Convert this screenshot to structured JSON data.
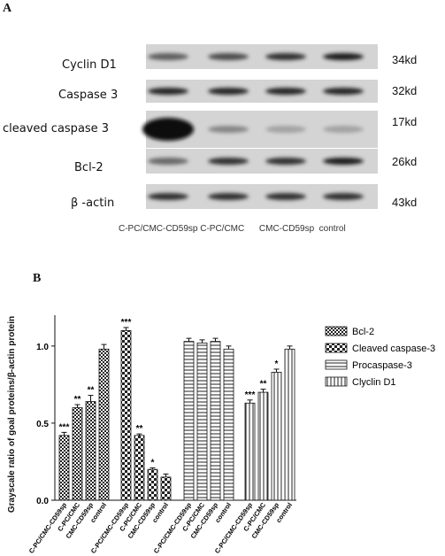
{
  "panel_a": {
    "letter": "A",
    "rows": [
      {
        "label": "Cyclin D1",
        "size": "34kd",
        "intensity": [
          0.55,
          0.65,
          0.8,
          0.9
        ]
      },
      {
        "label": "Caspase 3",
        "size": "32kd",
        "intensity": [
          0.85,
          0.85,
          0.85,
          0.85
        ]
      },
      {
        "label": "cleaved caspase 3",
        "size": "17kd",
        "intensity": [
          1.0,
          0.35,
          0.2,
          0.2
        ]
      },
      {
        "label": "Bcl-2",
        "size": "26kd",
        "intensity": [
          0.5,
          0.8,
          0.8,
          0.9
        ]
      },
      {
        "label": "β -actin",
        "size": "43kd",
        "intensity": [
          0.8,
          0.8,
          0.8,
          0.8
        ]
      }
    ],
    "lanes": "C-PC/CMC-CD59sp C-PC/CMC      CMC-CD59sp  control"
  },
  "chart_data": {
    "panel_letter": "B",
    "type": "bar",
    "ylabel": "Grayscale ratio of goal proteins/β-actin protein",
    "ylim": [
      0,
      1.2
    ],
    "yticks": [
      "0.0",
      "0.5",
      "1.0"
    ],
    "legend_position": "right",
    "categories": [
      "C-PC/CMC-CD59sp",
      "C-PC/CMC",
      "CMC-CD59sp",
      "control"
    ],
    "series": [
      {
        "name": "Bcl-2",
        "values": [
          0.42,
          0.6,
          0.64,
          0.98
        ],
        "errors": [
          0.02,
          0.02,
          0.04,
          0.03
        ],
        "sig": [
          "***",
          "**",
          "**",
          ""
        ],
        "pattern": "dense"
      },
      {
        "name": "Cleaved caspase-3",
        "values": [
          1.1,
          0.42,
          0.2,
          0.15
        ],
        "errors": [
          0.02,
          0.01,
          0.01,
          0.02
        ],
        "sig": [
          "***",
          "**",
          "*",
          ""
        ],
        "pattern": "check"
      },
      {
        "name": "Procaspase-3",
        "values": [
          1.03,
          1.02,
          1.03,
          0.98
        ],
        "errors": [
          0.02,
          0.02,
          0.02,
          0.02
        ],
        "sig": [
          "",
          "",
          "",
          ""
        ],
        "pattern": "hlines"
      },
      {
        "name": "Clyclin D1",
        "values": [
          0.63,
          0.7,
          0.83,
          0.98
        ],
        "errors": [
          0.02,
          0.02,
          0.02,
          0.02
        ],
        "sig": [
          "***",
          "**",
          "*",
          ""
        ],
        "pattern": "vlines"
      }
    ]
  }
}
